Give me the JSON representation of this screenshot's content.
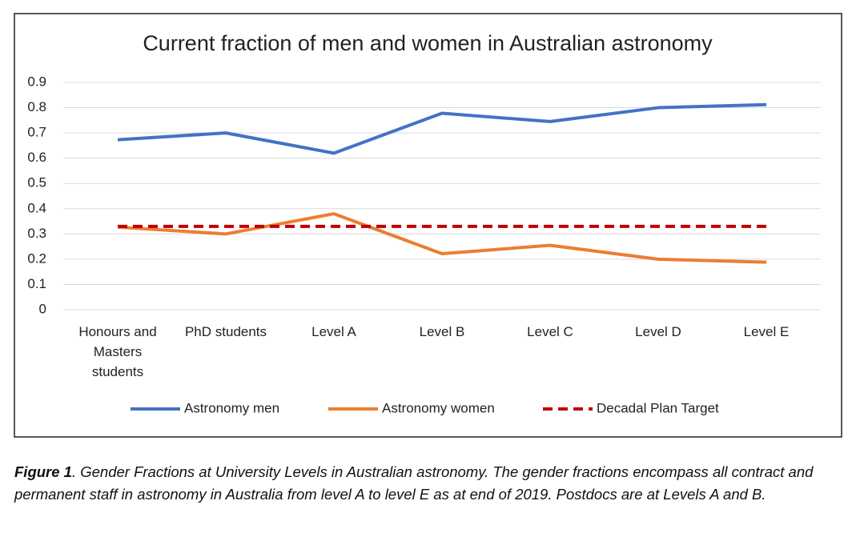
{
  "chart_data": {
    "type": "line",
    "title": "Current fraction of men and women in Australian astronomy",
    "categories": [
      "Honours and Masters students",
      "PhD students",
      "Level A",
      "Level B",
      "Level C",
      "Level D",
      "Level E"
    ],
    "series": [
      {
        "name": "Astronomy men",
        "color": "#4472c4",
        "values": [
          0.673,
          0.7,
          0.62,
          0.778,
          0.745,
          0.8,
          0.812
        ]
      },
      {
        "name": "Astronomy women",
        "color": "#ed7d31",
        "values": [
          0.327,
          0.3,
          0.38,
          0.222,
          0.255,
          0.2,
          0.188
        ]
      },
      {
        "name": "Decadal Plan Target",
        "color": "#c00000",
        "dashed": true,
        "values": [
          0.33,
          0.33,
          0.33,
          0.33,
          0.33,
          0.33,
          0.33
        ]
      }
    ],
    "ylim": [
      0,
      0.9
    ],
    "yticks": [
      0,
      0.1,
      0.2,
      0.3,
      0.4,
      0.5,
      0.6,
      0.7,
      0.8,
      0.9
    ],
    "grid": true,
    "legend": "bottom"
  },
  "caption": {
    "label": "Figure 1",
    "text": ". Gender Fractions at University Levels in Australian astronomy.  The gender fractions encompass all contract and permanent staff in astronomy in Australia from level A to level E as at end of 2019.   Postdocs are at Levels A and B."
  }
}
